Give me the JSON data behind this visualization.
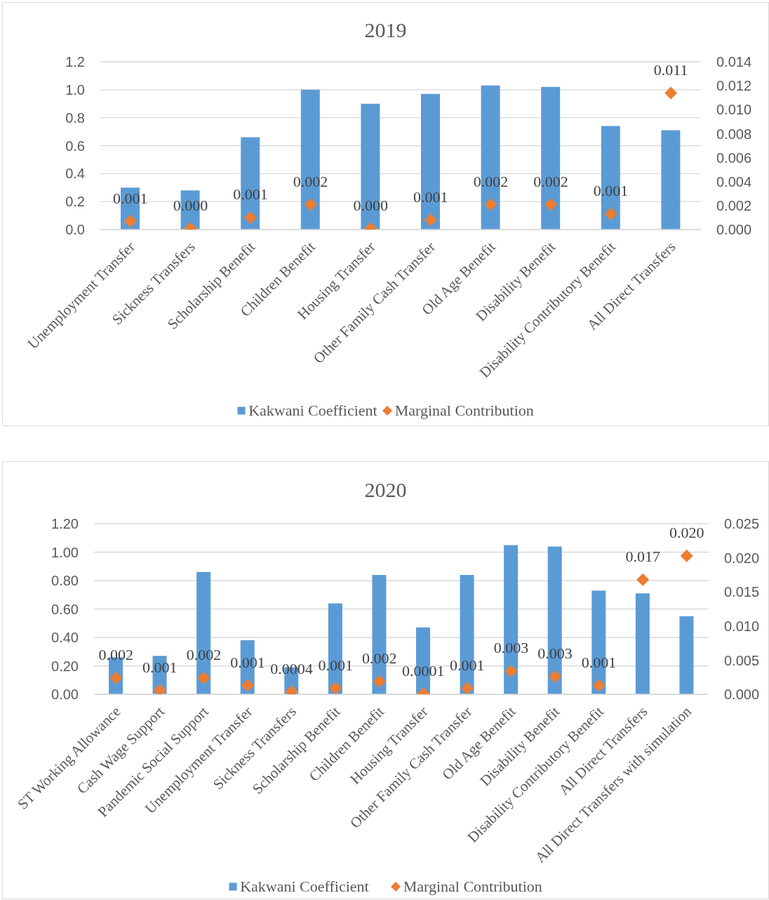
{
  "chart_data": [
    {
      "type": "bar",
      "title": "2019",
      "categories": [
        "Unemployment Transfer",
        "Sickness Transfers",
        "Scholarship Benefit",
        "Children Benefit",
        "Housing Transfer",
        "Other Family Cash Transfer",
        "Old Age Benefit",
        "Disability Benefit",
        "Disability Contributory Benefit",
        "All Direct Transfers"
      ],
      "series": [
        {
          "name": "Kakwani Coefficient",
          "type": "bar",
          "color": "#5b9bd5",
          "values": [
            0.3,
            0.28,
            0.66,
            1.0,
            0.9,
            0.97,
            1.03,
            1.02,
            0.74,
            0.71
          ]
        },
        {
          "name": "Marginal Contribution",
          "type": "scatter",
          "axis": "y2",
          "marker": "diamond",
          "color": "#ed7d31",
          "values": [
            0.0007,
            0.0001,
            0.001,
            0.0021,
            0.0001,
            0.0008,
            0.0021,
            0.0021,
            0.0013,
            0.0114
          ],
          "value_labels": [
            "0.001",
            "0.000",
            "0.001",
            "0.002",
            "0.000",
            "0.001",
            "0.002",
            "0.002",
            "0.001",
            "0.011"
          ]
        }
      ],
      "ylim": [
        0,
        1.2
      ],
      "yticks": [
        {
          "value": 0,
          "label": "0.0"
        },
        0.2,
        0.4,
        0.6,
        0.8,
        {
          "value": 1,
          "label": "1.0"
        },
        1.2
      ],
      "y2lim": [
        0,
        0.014
      ],
      "y2ticks": [
        {
          "value": 0,
          "label": "0.000"
        },
        0.002,
        0.004,
        0.006,
        0.008,
        {
          "value": 0.01,
          "label": "0.010"
        },
        0.012,
        0.014
      ],
      "grid": "y",
      "legend": "bottom"
    },
    {
      "type": "bar",
      "title": "2020",
      "categories": [
        "ST Working Allowance",
        "Cash Wage Support",
        "Pandemic Social Support",
        "Unemployment Transfer",
        "Sickness Transfers",
        "Scholarship Benefit",
        "Children Benefit",
        "Housing Transfer",
        "Other Family Cash Transfer",
        "Old Age Benefit",
        "Disability Benefit",
        "Disability Contributory Benefit",
        "All Direct Transfers",
        "All Direct Transfers with simulation"
      ],
      "series": [
        {
          "name": "Kakwani Coefficient",
          "type": "bar",
          "color": "#5b9bd5",
          "values": [
            0.26,
            0.27,
            0.86,
            0.38,
            0.19,
            0.64,
            0.84,
            0.47,
            0.84,
            1.05,
            1.04,
            0.73,
            0.71,
            0.55
          ]
        },
        {
          "name": "Marginal Contribution",
          "type": "scatter",
          "axis": "y2",
          "marker": "diamond",
          "color": "#ed7d31",
          "values": [
            0.0024,
            0.0006,
            0.0024,
            0.0013,
            0.0004,
            0.0009,
            0.0019,
            0.0001,
            0.0009,
            0.0034,
            0.0026,
            0.0013,
            0.0168,
            0.0203
          ],
          "value_labels": [
            "0.002",
            "0.001",
            "0.002",
            "0.001",
            "0.0004",
            "0.001",
            "0.002",
            "0.0001",
            "0.001",
            "0.003",
            "0.003",
            "0.001",
            "0.017",
            "0.020"
          ]
        }
      ],
      "ylim": [
        0,
        1.2
      ],
      "yticks": [
        {
          "value": 0,
          "label": "0.00"
        },
        {
          "value": 0.2,
          "label": "0.20"
        },
        {
          "value": 0.4,
          "label": "0.40"
        },
        {
          "value": 0.6,
          "label": "0.60"
        },
        {
          "value": 0.8,
          "label": "0.80"
        },
        {
          "value": 1,
          "label": "1.00"
        },
        {
          "value": 1.2,
          "label": "1.20"
        }
      ],
      "y2lim": [
        0,
        0.025
      ],
      "y2ticks": [
        {
          "value": 0,
          "label": "0.000"
        },
        0.005,
        {
          "value": 0.01,
          "label": "0.010"
        },
        0.015,
        {
          "value": 0.02,
          "label": "0.020"
        },
        0.025
      ],
      "grid": "y",
      "legend": "bottom"
    }
  ]
}
